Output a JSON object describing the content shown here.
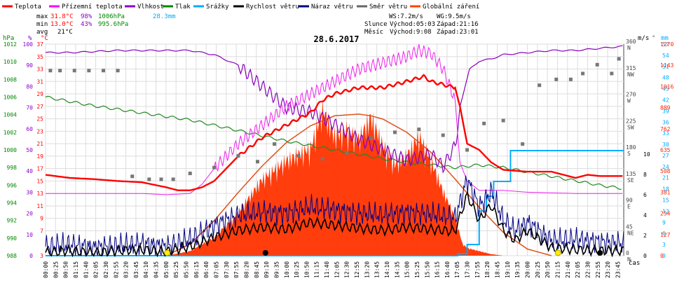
{
  "chart_data": {
    "type": "line",
    "title": "28.6.2017",
    "legend": [
      {
        "label": "Teplota",
        "color": "#ff0000"
      },
      {
        "label": "Přízemní teplota",
        "color": "#ff00ff"
      },
      {
        "label": "Vlhkost",
        "color": "#8800cc"
      },
      {
        "label": "Tlak",
        "color": "#008800"
      },
      {
        "label": "Srážky",
        "color": "#00aaff"
      },
      {
        "label": "Rychlost větru",
        "color": "#000000"
      },
      {
        "label": "Náraz větru",
        "color": "#000080"
      },
      {
        "label": "Směr větru",
        "color": "#666666"
      },
      {
        "label": "Globální záření",
        "color": "#ff4400"
      }
    ],
    "stats": {
      "max_label": "max",
      "max_temp": "31.8°C",
      "max_hum": "98%",
      "max_press": "1006hPa",
      "max_rain": "28.3mm",
      "min_label": "min",
      "min_temp": "13.0°C",
      "min_hum": "43%",
      "min_press": "995.6hPa",
      "avg_label": "avg",
      "avg_temp": "21°C",
      "ws": "WS:7.2m/s",
      "wg": "WG:9.5m/s",
      "sun_label": "Slunce",
      "sun_rise": "Východ:05:03",
      "sun_set": "Západ:21:16",
      "moon_label": "Měsíc",
      "moon_rise": "Východ:9:08",
      "moon_set": "Západ:23:01"
    },
    "left_axes": {
      "units": [
        "hPa",
        "%",
        "°C"
      ],
      "hpa": [
        "988",
        "990",
        "992",
        "994",
        "996",
        "998",
        "1000",
        "1002",
        "1004",
        "1006",
        "1008",
        "1010",
        "1012"
      ],
      "pct": [
        "0",
        "10",
        "20",
        "30",
        "40",
        "50",
        "60",
        "70",
        "80",
        "90",
        "100"
      ],
      "degc": [
        "3",
        "7",
        "9",
        "11",
        "13",
        "15",
        "17",
        "19",
        "21",
        "23",
        "25",
        "27",
        "29",
        "31",
        "33",
        "35",
        "37"
      ]
    },
    "right_axes": {
      "units": [
        "m/s",
        "°",
        "mm"
      ],
      "ms": [
        "0",
        "2",
        "4",
        "6",
        "8",
        "10"
      ],
      "deg": [
        {
          "v": "0",
          "d": "N"
        },
        {
          "v": "45",
          "d": "NE"
        },
        {
          "v": "90",
          "d": "E"
        },
        {
          "v": "135",
          "d": "SE"
        },
        {
          "v": "180",
          "d": "S"
        },
        {
          "v": "225",
          "d": "SW"
        },
        {
          "v": "270",
          "d": "W"
        },
        {
          "v": "315",
          "d": "NW"
        },
        {
          "v": "360",
          "d": "N"
        }
      ],
      "mm": [
        "0",
        "3",
        "6",
        "9",
        "12",
        "15",
        "18",
        "21",
        "24",
        "27",
        "30",
        "33",
        "36",
        "39",
        "42",
        "45",
        "48",
        "51",
        "54",
        "57"
      ],
      "wm2": [
        "0",
        "127",
        "254",
        "381",
        "508",
        "635",
        "762",
        "889",
        "1016",
        "1143",
        "1270"
      ]
    },
    "x_label": "čas",
    "x_ticks": [
      "00:00",
      "00:25",
      "00:50",
      "01:15",
      "01:40",
      "02:05",
      "02:30",
      "02:55",
      "03:20",
      "03:45",
      "04:10",
      "04:35",
      "05:00",
      "05:25",
      "05:50",
      "06:15",
      "06:40",
      "07:05",
      "07:30",
      "07:55",
      "08:20",
      "08:45",
      "09:10",
      "09:35",
      "10:00",
      "10:25",
      "10:50",
      "11:15",
      "11:40",
      "12:05",
      "12:30",
      "12:55",
      "13:20",
      "13:45",
      "14:10",
      "14:35",
      "15:00",
      "15:25",
      "15:50",
      "16:15",
      "16:40",
      "17:05",
      "17:30",
      "17:55",
      "18:20",
      "18:45",
      "19:10",
      "19:35",
      "20:00",
      "20:25",
      "20:50",
      "21:15",
      "21:40",
      "22:05",
      "22:30",
      "22:55",
      "23:20",
      "23:45"
    ],
    "series": {
      "temperature_c": {
        "x": [
          0,
          1,
          2,
          3,
          4,
          5,
          5.5,
          6,
          6.5,
          7,
          8,
          9,
          10,
          11,
          11.5,
          12,
          13,
          14,
          15,
          15.7,
          16,
          16.5,
          17,
          17.2,
          17.5,
          18,
          18.5,
          19,
          20,
          21,
          22,
          22.5,
          23,
          24
        ],
        "y": [
          16,
          15.5,
          15.3,
          15,
          14.8,
          14,
          13.5,
          13.5,
          14,
          15,
          19,
          22,
          24,
          26,
          28,
          29,
          30,
          30,
          31,
          31.8,
          31,
          30.5,
          30,
          27,
          21,
          20,
          18,
          16.8,
          16.5,
          16.5,
          15.5,
          16,
          15.8,
          15.8
        ]
      },
      "ground_temp_c": {
        "x": [
          0,
          4,
          5,
          6,
          6.5,
          7,
          8,
          9,
          10,
          11,
          12,
          13,
          14,
          15,
          15.5,
          16,
          16.5,
          17,
          17.2,
          17.5,
          18,
          18.5,
          19,
          20,
          22,
          24
        ],
        "y": [
          13,
          13,
          12.8,
          13,
          14.5,
          17,
          21,
          24,
          27,
          29,
          31,
          33,
          34,
          35,
          36,
          35.5,
          33,
          28,
          18,
          15,
          13.5,
          13.5,
          13.5,
          13.2,
          13,
          13
        ]
      },
      "humidity_pct": {
        "x": [
          0,
          1,
          3,
          5,
          6,
          7,
          8,
          9,
          10,
          11,
          12,
          13,
          14,
          15,
          16,
          16.5,
          17,
          17.3,
          17.6,
          18,
          18.5,
          19,
          20,
          21,
          22,
          23,
          24
        ],
        "y": [
          96,
          96,
          97,
          97,
          97,
          95,
          90,
          80,
          70,
          68,
          62,
          55,
          50,
          45,
          48,
          42,
          52,
          75,
          88,
          92,
          93,
          95,
          96,
          97,
          97,
          98,
          99
        ]
      },
      "pressure_hpa": {
        "x": [
          0,
          1,
          2,
          3,
          4,
          5,
          6,
          7,
          8,
          9,
          10,
          11,
          12,
          13,
          14,
          15,
          16,
          17,
          18,
          19,
          20,
          21,
          22,
          23,
          24
        ],
        "y": [
          1006,
          1005.5,
          1005,
          1004.6,
          1004.2,
          1003.8,
          1003.4,
          1002.8,
          1002.2,
          1001.6,
          1001.0,
          1000.5,
          1000.0,
          999.5,
          999.0,
          998.6,
          998.3,
          998.0,
          998.3,
          998.0,
          997.5,
          997.0,
          996.5,
          996.0,
          995.6
        ]
      },
      "rain_mm": {
        "x": [
          0,
          16.9,
          17.1,
          17.5,
          18,
          18.3,
          18.6,
          19,
          19.3,
          19.5,
          24
        ],
        "y": [
          0,
          0,
          0.5,
          3,
          12,
          16,
          20,
          20,
          28.3,
          28.3,
          28.3
        ]
      },
      "radiation_wm2": {
        "x": [
          5,
          6,
          7,
          8,
          9,
          10,
          11,
          11.5,
          12,
          12.5,
          13,
          13.5,
          14,
          14.5,
          15,
          15.5,
          16,
          16.5,
          17,
          17.3,
          17.5,
          18,
          18.5,
          19
        ],
        "y": [
          0,
          30,
          120,
          280,
          500,
          620,
          700,
          950,
          780,
          820,
          760,
          900,
          720,
          600,
          650,
          780,
          620,
          420,
          250,
          80,
          50,
          30,
          10,
          0
        ]
      },
      "clear_sky_wm2": {
        "x": [
          5,
          6,
          7,
          8,
          9,
          10,
          11,
          12,
          13,
          13.5,
          14,
          15,
          16,
          17,
          18,
          19,
          20,
          21
        ],
        "y": [
          0,
          70,
          210,
          380,
          540,
          680,
          780,
          840,
          850,
          840,
          820,
          740,
          620,
          460,
          290,
          140,
          40,
          0
        ]
      },
      "wind_ms": {
        "x": [
          0,
          1,
          2,
          3,
          4,
          5,
          6,
          7,
          8,
          9,
          10,
          11,
          12,
          13,
          14,
          15,
          16,
          17,
          17.5,
          18,
          18.5,
          19,
          19.5,
          20,
          21,
          22,
          23,
          24
        ],
        "y": [
          0.3,
          0.5,
          0.3,
          0.5,
          0.6,
          0.4,
          0.9,
          1.8,
          2.5,
          2.8,
          2.6,
          3.3,
          3.0,
          2.7,
          2.5,
          2.8,
          2.6,
          2.4,
          6.0,
          3.5,
          5.0,
          2.5,
          1.5,
          2.5,
          0.8,
          0.6,
          0.5,
          0.5
        ]
      },
      "gust_ms": {
        "x": [
          0,
          1,
          2,
          3,
          4,
          5,
          6,
          7,
          8,
          9,
          10,
          11,
          12,
          13,
          14,
          15,
          16,
          17,
          17.5,
          18,
          18.5,
          19,
          19.5,
          20,
          21,
          22,
          23,
          24
        ],
        "y": [
          0.9,
          1.1,
          0.8,
          1.0,
          1.2,
          0.9,
          1.6,
          3.0,
          4.0,
          4.3,
          4.2,
          4.8,
          4.5,
          4.2,
          4.0,
          4.3,
          4.1,
          3.7,
          7.5,
          4.8,
          6.3,
          3.6,
          2.4,
          3.3,
          1.5,
          1.6,
          1.4,
          1.2
        ]
      },
      "wind_dir_deg": {
        "x": [
          0.2,
          0.6,
          1.2,
          1.8,
          2.4,
          3.0,
          3.6,
          4.3,
          4.8,
          5.3,
          6.0,
          7.0,
          8.0,
          8.8,
          9.5,
          10.5,
          11.5,
          12.5,
          13.5,
          14.5,
          15.5,
          16.5,
          17.5,
          18.2,
          19.0,
          19.8,
          20.5,
          21.2,
          21.8,
          22.3,
          22.9,
          23.5,
          23.8
        ],
        "y": [
          315,
          315,
          315,
          315,
          315,
          315,
          135,
          130,
          130,
          130,
          140,
          150,
          170,
          160,
          190,
          170,
          165,
          175,
          200,
          210,
          215,
          205,
          180,
          225,
          230,
          190,
          290,
          300,
          300,
          310,
          325,
          310,
          335
        ]
      }
    },
    "markers": [
      {
        "type": "sunrise",
        "x": 5.05
      },
      {
        "type": "moonrise",
        "x": 9.13
      },
      {
        "type": "sunset",
        "x": 21.27
      },
      {
        "type": "moonset",
        "x": 23.02
      }
    ]
  }
}
